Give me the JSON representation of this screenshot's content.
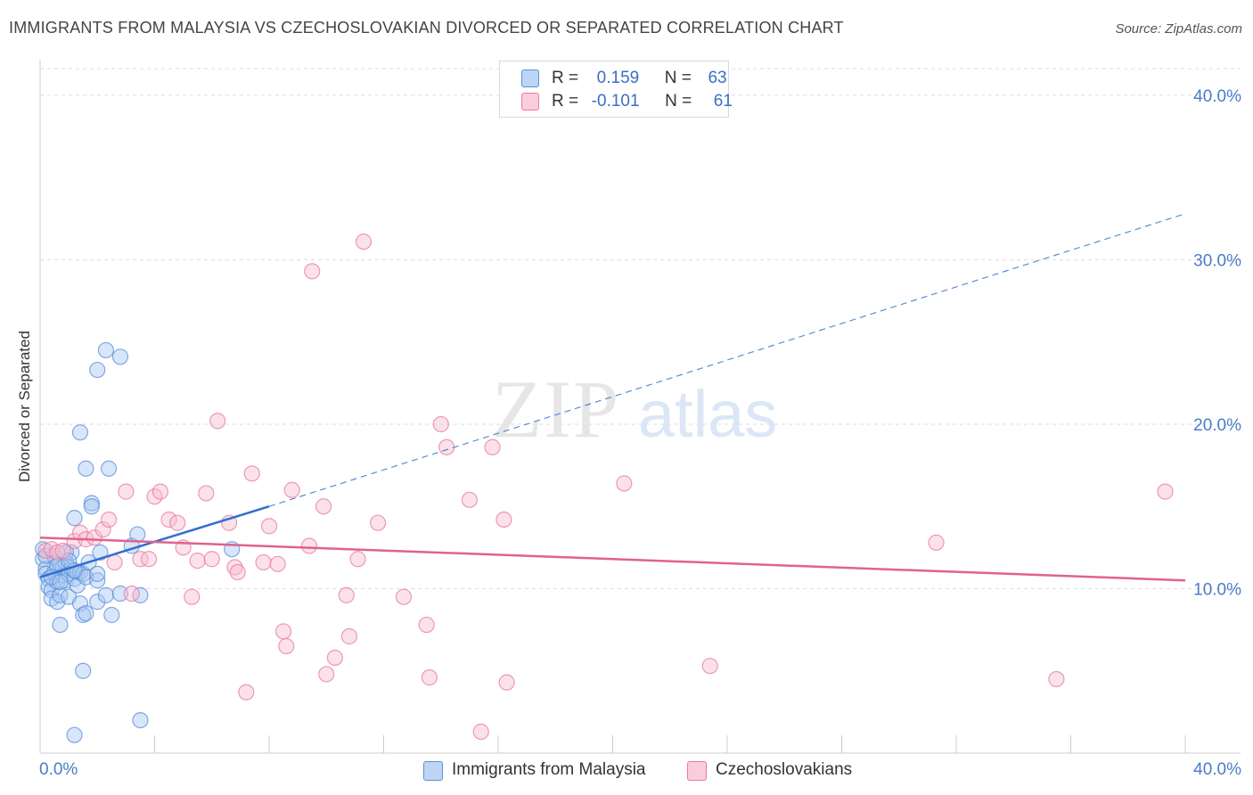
{
  "header": {
    "title": "IMMIGRANTS FROM MALAYSIA VS CZECHOSLOVAKIAN DIVORCED OR SEPARATED CORRELATION CHART",
    "source": "Source: ZipAtlas.com"
  },
  "watermark": {
    "zip": "ZIP",
    "atlas": "atlas"
  },
  "legend": {
    "rows": [
      {
        "r_label": "R =",
        "r_value": "0.159",
        "n_label": "N =",
        "n_value": "63"
      },
      {
        "r_label": "R =",
        "r_value": "-0.101",
        "n_label": "N =",
        "n_value": "61"
      }
    ]
  },
  "chart_data": {
    "type": "scatter",
    "title": "IMMIGRANTS FROM MALAYSIA VS CZECHOSLOVAKIAN DIVORCED OR SEPARATED CORRELATION CHART",
    "xlabel": "",
    "ylabel": "Divorced or Separated",
    "xlim": [
      0,
      40
    ],
    "ylim": [
      0,
      42
    ],
    "x_tick_labels": [
      "0.0%",
      "40.0%"
    ],
    "y_ticks": [
      10,
      20,
      30,
      40
    ],
    "y_tick_labels": [
      "10.0%",
      "20.0%",
      "30.0%",
      "40.0%"
    ],
    "grid": true,
    "legend_position": "top-center",
    "colors": {
      "blue": "#5b8fd9",
      "blue_fill": "#a9c8f2",
      "pink": "#e87aa0",
      "pink_fill": "#f6bcd0",
      "blue_line": "#2f6fd0",
      "pink_line": "#e0628f"
    },
    "series": [
      {
        "name": "Immigrants from Malaysia",
        "color": "#5b8fd9",
        "r": 0.159,
        "n": 63,
        "trend": {
          "x": [
            0,
            8
          ],
          "y": [
            10.7,
            15.0
          ],
          "dashed_extension": {
            "x": [
              8,
              40
            ],
            "y": [
              15.0,
              32.8
            ]
          }
        },
        "points": [
          [
            0.1,
            12.4
          ],
          [
            0.1,
            11.8
          ],
          [
            0.2,
            11.2
          ],
          [
            0.2,
            10.9
          ],
          [
            0.3,
            10.6
          ],
          [
            0.3,
            10.1
          ],
          [
            0.4,
            9.9
          ],
          [
            0.4,
            9.4
          ],
          [
            0.5,
            12.0
          ],
          [
            0.5,
            11.0
          ],
          [
            0.6,
            10.4
          ],
          [
            0.6,
            9.2
          ],
          [
            0.7,
            11.5
          ],
          [
            0.7,
            9.6
          ],
          [
            0.8,
            11.3
          ],
          [
            0.8,
            10.8
          ],
          [
            0.9,
            11.6
          ],
          [
            0.9,
            10.5
          ],
          [
            1.0,
            10.9
          ],
          [
            1.0,
            9.5
          ],
          [
            0.7,
            7.8
          ],
          [
            1.1,
            11.2
          ],
          [
            1.1,
            12.2
          ],
          [
            1.2,
            10.6
          ],
          [
            1.3,
            11.0
          ],
          [
            1.3,
            10.2
          ],
          [
            1.2,
            14.3
          ],
          [
            1.4,
            11.0
          ],
          [
            1.5,
            10.9
          ],
          [
            1.4,
            9.1
          ],
          [
            1.5,
            8.4
          ],
          [
            1.4,
            19.5
          ],
          [
            1.6,
            17.3
          ],
          [
            1.6,
            8.5
          ],
          [
            1.7,
            11.6
          ],
          [
            1.8,
            15.2
          ],
          [
            1.8,
            15.0
          ],
          [
            1.6,
            10.7
          ],
          [
            2.0,
            10.5
          ],
          [
            2.0,
            10.9
          ],
          [
            2.1,
            12.2
          ],
          [
            2.0,
            9.2
          ],
          [
            2.3,
            9.6
          ],
          [
            2.4,
            17.3
          ],
          [
            2.5,
            8.4
          ],
          [
            2.8,
            9.7
          ],
          [
            3.2,
            12.6
          ],
          [
            3.4,
            13.3
          ],
          [
            3.5,
            9.6
          ],
          [
            2.0,
            23.3
          ],
          [
            2.3,
            24.5
          ],
          [
            2.8,
            24.1
          ],
          [
            1.5,
            5.0
          ],
          [
            3.5,
            2.0
          ],
          [
            1.2,
            1.1
          ],
          [
            6.7,
            12.4
          ],
          [
            0.2,
            12.0
          ],
          [
            0.6,
            11.4
          ],
          [
            0.9,
            12.2
          ],
          [
            1.0,
            11.7
          ],
          [
            0.4,
            10.7
          ],
          [
            0.7,
            10.4
          ],
          [
            1.2,
            11.1
          ]
        ]
      },
      {
        "name": "Czechoslovakians",
        "color": "#e87aa0",
        "r": -0.101,
        "n": 61,
        "trend": {
          "x": [
            0,
            40
          ],
          "y": [
            13.1,
            10.5
          ]
        },
        "points": [
          [
            0.2,
            12.3
          ],
          [
            0.4,
            12.4
          ],
          [
            0.6,
            12.2
          ],
          [
            0.8,
            12.3
          ],
          [
            1.2,
            12.9
          ],
          [
            1.4,
            13.4
          ],
          [
            1.6,
            13.0
          ],
          [
            1.9,
            13.1
          ],
          [
            2.2,
            13.6
          ],
          [
            2.4,
            14.2
          ],
          [
            2.6,
            11.6
          ],
          [
            3.0,
            15.9
          ],
          [
            3.2,
            9.7
          ],
          [
            3.5,
            11.8
          ],
          [
            3.8,
            11.8
          ],
          [
            4.0,
            15.6
          ],
          [
            4.2,
            15.9
          ],
          [
            4.5,
            14.2
          ],
          [
            4.8,
            14.0
          ],
          [
            5.0,
            12.5
          ],
          [
            5.3,
            9.5
          ],
          [
            5.5,
            11.7
          ],
          [
            5.8,
            15.8
          ],
          [
            6.0,
            11.8
          ],
          [
            6.2,
            20.2
          ],
          [
            6.6,
            14.0
          ],
          [
            6.8,
            11.3
          ],
          [
            6.9,
            11.0
          ],
          [
            7.2,
            3.7
          ],
          [
            7.4,
            17.0
          ],
          [
            7.8,
            11.6
          ],
          [
            8.0,
            13.8
          ],
          [
            8.3,
            11.5
          ],
          [
            8.5,
            7.4
          ],
          [
            8.6,
            6.5
          ],
          [
            8.8,
            16.0
          ],
          [
            9.4,
            12.6
          ],
          [
            9.5,
            29.3
          ],
          [
            9.9,
            15.0
          ],
          [
            10.0,
            4.8
          ],
          [
            10.3,
            5.8
          ],
          [
            10.7,
            9.6
          ],
          [
            10.8,
            7.1
          ],
          [
            11.1,
            11.8
          ],
          [
            11.3,
            31.1
          ],
          [
            11.8,
            14.0
          ],
          [
            12.7,
            9.5
          ],
          [
            13.5,
            7.8
          ],
          [
            13.6,
            4.6
          ],
          [
            14.0,
            20.0
          ],
          [
            14.2,
            18.6
          ],
          [
            15.0,
            15.4
          ],
          [
            15.4,
            1.3
          ],
          [
            15.8,
            18.6
          ],
          [
            16.2,
            14.2
          ],
          [
            16.3,
            4.3
          ],
          [
            20.4,
            16.4
          ],
          [
            23.4,
            5.3
          ],
          [
            31.3,
            12.8
          ],
          [
            35.5,
            4.5
          ],
          [
            39.3,
            15.9
          ]
        ]
      }
    ]
  },
  "bottom_legend": [
    {
      "label": "Immigrants from Malaysia"
    },
    {
      "label": "Czechoslovakians"
    }
  ]
}
